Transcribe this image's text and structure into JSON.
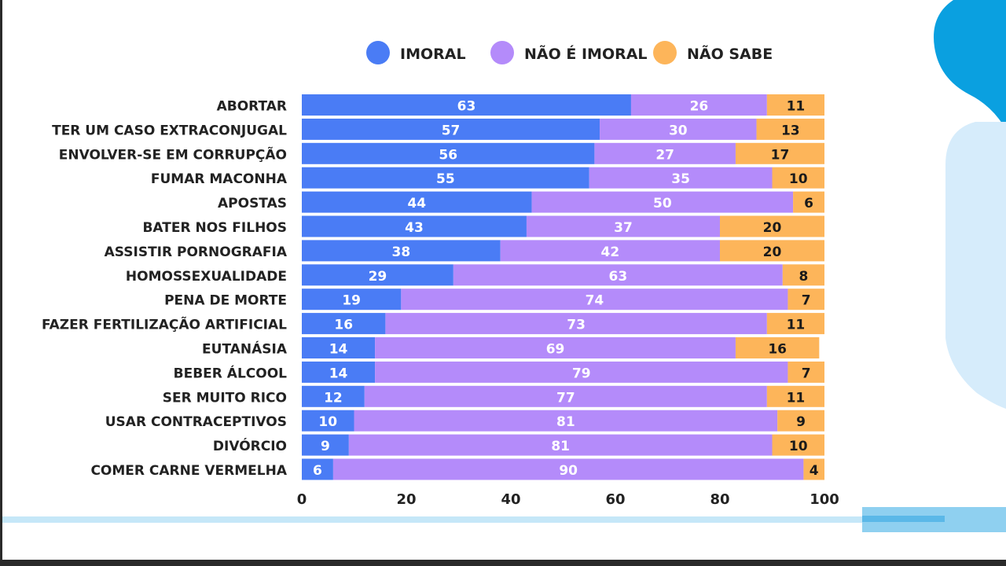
{
  "chart_data": {
    "type": "bar",
    "orientation": "horizontal",
    "stacked": true,
    "categories": [
      "ABORTAR",
      "TER UM CASO EXTRACONJUGAL",
      "ENVOLVER-SE EM CORRUPÇÃO",
      "FUMAR MACONHA",
      "APOSTAS",
      "BATER NOS FILHOS",
      "ASSISTIR PORNOGRAFIA",
      "HOMOSSEXUALIDADE",
      "PENA DE MORTE",
      "FAZER FERTILIZAÇÃO ARTIFICIAL",
      "EUTANÁSIA",
      "BEBER ÁLCOOL",
      "SER MUITO RICO",
      "USAR CONTRACEPTIVOS",
      "DIVÓRCIO",
      "COMER CARNE VERMELHA"
    ],
    "series": [
      {
        "name": "IMORAL",
        "color": "#4a7cf5",
        "label_color": "#ffffff",
        "values": [
          63,
          57,
          56,
          55,
          44,
          43,
          38,
          29,
          19,
          16,
          14,
          14,
          12,
          10,
          9,
          6
        ]
      },
      {
        "name": "NÃO É IMORAL",
        "color": "#b48bfa",
        "label_color": "#ffffff",
        "values": [
          26,
          30,
          27,
          35,
          50,
          37,
          42,
          63,
          74,
          73,
          69,
          79,
          77,
          81,
          81,
          90
        ]
      },
      {
        "name": "NÃO SABE",
        "color": "#fdb55a",
        "label_color": "#1a1a1a",
        "values": [
          11,
          13,
          17,
          10,
          6,
          20,
          20,
          8,
          7,
          11,
          16,
          7,
          11,
          9,
          10,
          4
        ]
      }
    ],
    "xlim": [
      0,
      100
    ],
    "x_ticks": [
      0,
      20,
      40,
      60,
      80,
      100
    ],
    "legend_position": "top",
    "grid": false
  }
}
